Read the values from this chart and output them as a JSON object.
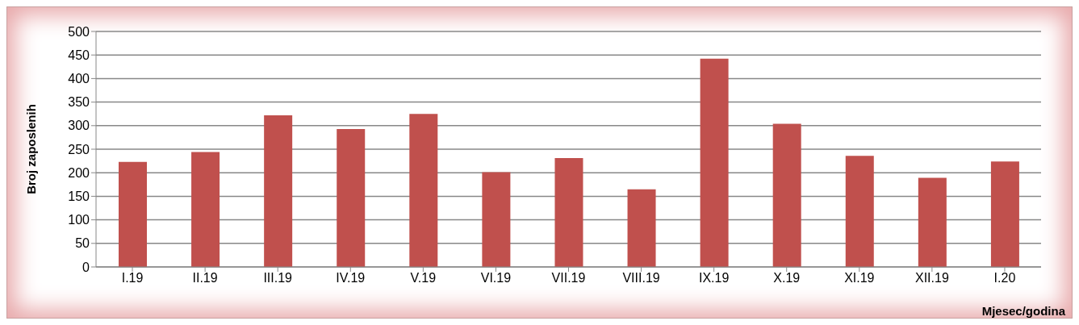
{
  "chart_data": {
    "type": "bar",
    "xlabel": "Mjesec/godina",
    "ylabel": "Broj zaposlenih",
    "categories": [
      "I.19",
      "II.19",
      "III.19",
      "IV.19",
      "V.19",
      "VI.19",
      "VII.19",
      "VIII.19",
      "IX.19",
      "X.19",
      "XI.19",
      "XII.19",
      "I.20"
    ],
    "values": [
      223,
      244,
      322,
      293,
      325,
      201,
      231,
      165,
      442,
      304,
      236,
      189,
      224
    ],
    "color": "#c0504d",
    "ylim": [
      0,
      500
    ],
    "yticks": [
      0,
      50,
      100,
      150,
      200,
      250,
      300,
      350,
      400,
      450,
      500
    ],
    "grid": "y"
  }
}
